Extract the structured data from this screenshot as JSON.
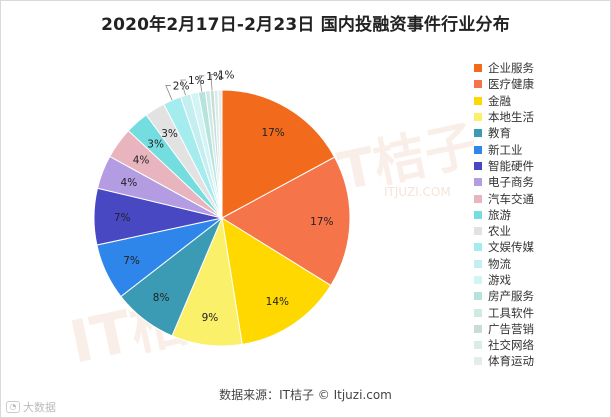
{
  "title": "2020年2月17日-2月23日 国内投融资事件行业分布",
  "source": "数据来源：IT桔子 © Itjuzi.com",
  "watermark": {
    "logo": "IT桔子",
    "url": "ITJUZI.COM"
  },
  "brand": {
    "label": "大数据",
    "icon": "chat-bubble-icon"
  },
  "chart_data": {
    "type": "pie",
    "title": "2020年2月17日-2月23日 国内投融资事件行业分布",
    "unit": "%",
    "legend_position": "right",
    "start": "12 o'clock, clockwise",
    "slices": [
      {
        "label": "企业服务",
        "value": 17.3,
        "display": "17%",
        "color": "#f26b1d"
      },
      {
        "label": "医疗健康",
        "value": 16.9,
        "display": "17%",
        "color": "#f5744a"
      },
      {
        "label": "金融",
        "value": 13.8,
        "display": "14%",
        "color": "#ffd800"
      },
      {
        "label": "本地生活",
        "value": 9.0,
        "display": "9%",
        "color": "#fbf06a"
      },
      {
        "label": "教育",
        "value": 8.2,
        "display": "8%",
        "color": "#3b9bb5"
      },
      {
        "label": "新工业",
        "value": 7.2,
        "display": "7%",
        "color": "#2f86ea"
      },
      {
        "label": "智能硬件",
        "value": 7.2,
        "display": "7%",
        "color": "#4848c3"
      },
      {
        "label": "电子商务",
        "value": 4.3,
        "display": "4%",
        "color": "#b39ce2"
      },
      {
        "label": "汽车交通",
        "value": 4.0,
        "display": "4%",
        "color": "#e8b4be"
      },
      {
        "label": "旅游",
        "value": 3.0,
        "display": "3%",
        "color": "#74dde0"
      },
      {
        "label": "农业",
        "value": 2.6,
        "display": "3%",
        "color": "#e2e2e2"
      },
      {
        "label": "文娱传媒",
        "value": 2.3,
        "display": "2%",
        "color": "#a5ecee"
      },
      {
        "label": "物流",
        "value": 1.3,
        "display": "1%",
        "color": "#c4eeef"
      },
      {
        "label": "游戏",
        "value": 1.0,
        "display": "",
        "color": "#d1f4f5"
      },
      {
        "label": "房产服务",
        "value": 0.9,
        "display": "1%",
        "color": "#b8e2dc"
      },
      {
        "label": "工具软件",
        "value": 0.6,
        "display": "",
        "color": "#cfe9e4"
      },
      {
        "label": "广告营销",
        "value": 0.5,
        "display": "1%",
        "color": "#c8ddd8"
      },
      {
        "label": "社交网络",
        "value": 0.5,
        "display": "",
        "color": "#dbece8"
      },
      {
        "label": "体育运动",
        "value": 0.5,
        "display": "",
        "color": "#e3eee9"
      }
    ]
  }
}
